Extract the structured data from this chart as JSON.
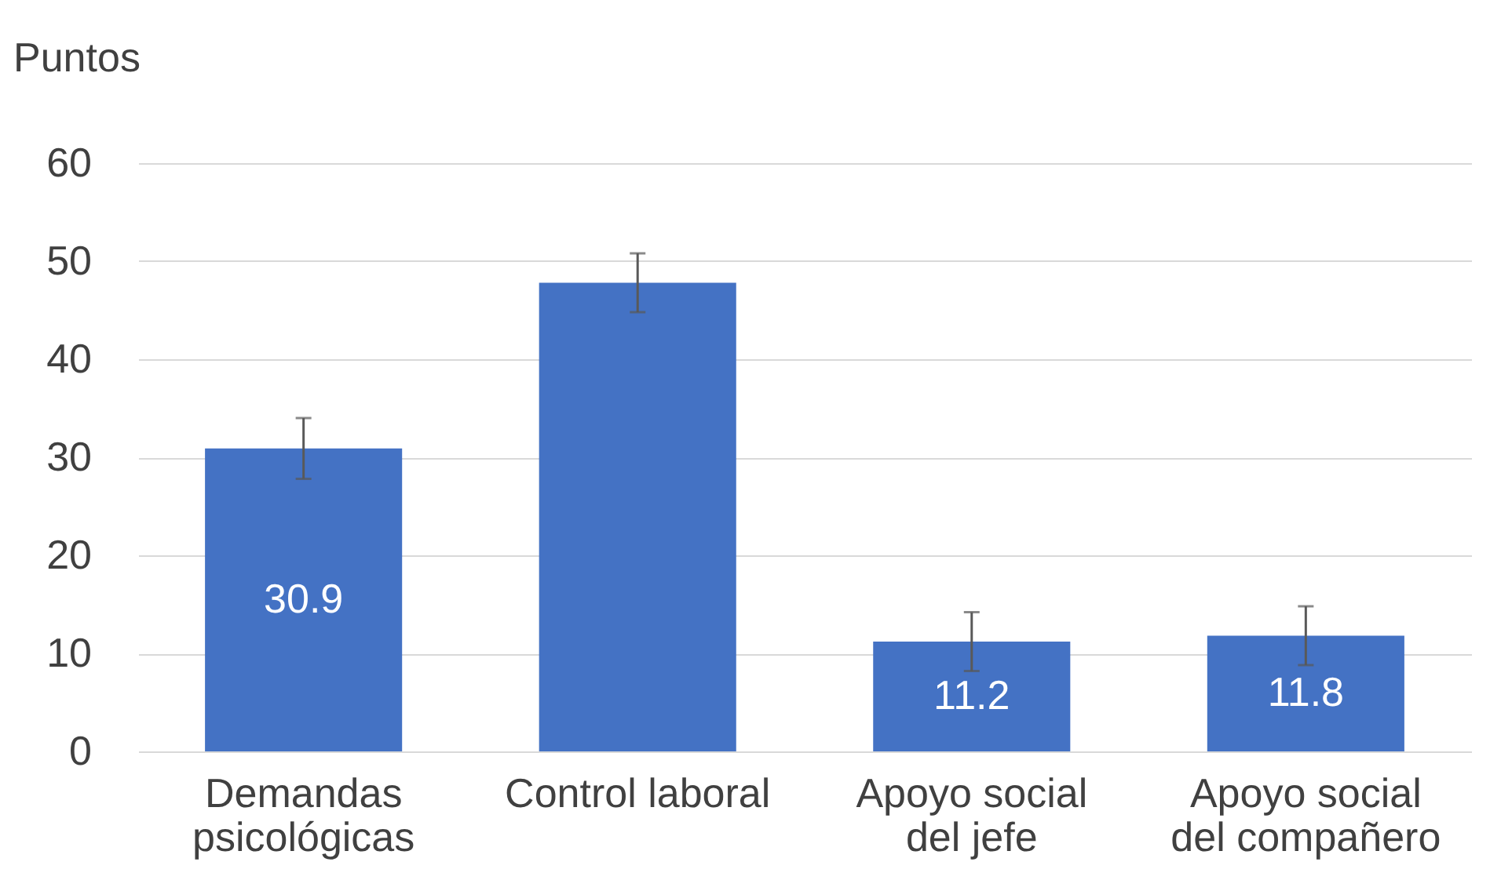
{
  "chart_data": {
    "type": "bar",
    "ylabel": "Puntos",
    "categories": [
      "Demandas psicológicas",
      "Control laboral",
      "Apoyo social del jefe",
      "Apoyo social del compañero"
    ],
    "values": [
      30.9,
      47.8,
      11.2,
      11.8
    ],
    "errors": [
      3.1,
      3,
      3,
      3
    ],
    "value_labels": [
      "30.9",
      null,
      "11.2",
      "11.8"
    ],
    "color": "#4472c4",
    "ylim": [
      0,
      60
    ],
    "yticks": [
      0,
      10,
      20,
      30,
      40,
      50,
      60
    ],
    "grid": "y"
  }
}
